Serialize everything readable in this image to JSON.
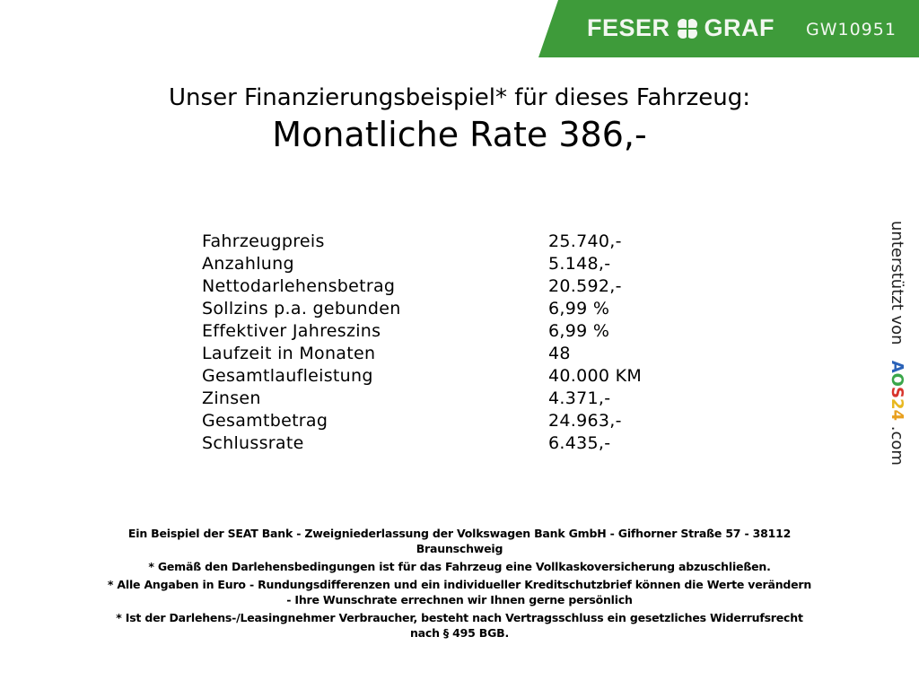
{
  "header": {
    "brand_left": "FESER",
    "brand_right": "GRAF",
    "vehicle_code": "GW10951",
    "brand_color": "#3e9b3a"
  },
  "title": "Unser Finanzierungsbeispiel* für dieses Fahrzeug:",
  "rate": "Monatliche Rate 386,-",
  "rows": [
    {
      "label": "Fahrzeugpreis",
      "value": "25.740,-"
    },
    {
      "label": "Anzahlung",
      "value": "5.148,-"
    },
    {
      "label": "Nettodarlehensbetrag",
      "value": "20.592,-"
    },
    {
      "label": "Sollzins p.a. gebunden",
      "value": "6,99 %"
    },
    {
      "label": "Effektiver Jahreszins",
      "value": "6,99 %"
    },
    {
      "label": "Laufzeit in Monaten",
      "value": "48"
    },
    {
      "label": "Gesamtlaufleistung",
      "value": "40.000 KM"
    },
    {
      "label": "Zinsen",
      "value": "4.371,-"
    },
    {
      "label": "Gesamtbetrag",
      "value": "24.963,-"
    },
    {
      "label": "Schlussrate",
      "value": "6.435,-"
    }
  ],
  "side": {
    "prefix": "unterstützt von",
    "logo": {
      "a": "A",
      "o": "O",
      "s": "S",
      "two": "2",
      "four": "4"
    },
    "suffix": ".com"
  },
  "footer": [
    [
      "Ein Beispiel der SEAT Bank - Zweigniederlassung der Volkswagen Bank GmbH - Gifhorner Straße 57 - 38112",
      "Braunschweig"
    ],
    [
      "* Gemäß den Darlehensbedingungen ist für das Fahrzeug eine Vollkaskoversicherung abzuschließen."
    ],
    [
      "* Alle Angaben in Euro - Rundungsdifferenzen und ein individueller Kreditschutzbrief können die Werte verändern",
      "- Ihre Wunschrate errechnen wir Ihnen gerne persönlich"
    ],
    [
      "* Ist der Darlehens-/Leasingnehmer Verbraucher, besteht nach Vertragsschluss ein gesetzliches Widerrufsrecht",
      "nach § 495 BGB."
    ]
  ]
}
